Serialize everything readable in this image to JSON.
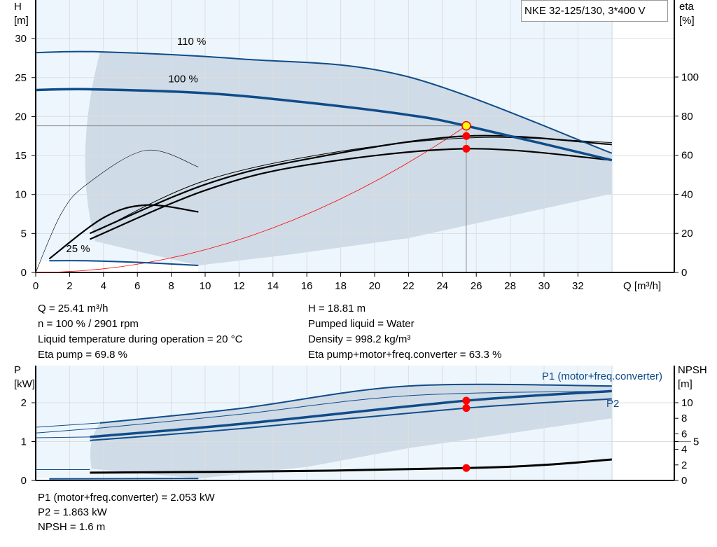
{
  "title_box": "NKE 32-125/130, 3*400 V",
  "chart_data": [
    {
      "type": "line",
      "name": "pump-curve",
      "xlabel": "Q [m³/h]",
      "ylabel": "H\n[m]",
      "y2label": "eta\n[%]",
      "xlim": [
        0,
        34
      ],
      "ylim": [
        0,
        30
      ],
      "y2lim": [
        0,
        100
      ],
      "grid": true,
      "xticks": [
        0,
        2,
        4,
        6,
        8,
        10,
        12,
        14,
        16,
        18,
        20,
        22,
        24,
        26,
        28,
        30,
        32
      ],
      "yticks": [
        0,
        5,
        10,
        15,
        20,
        25,
        30
      ],
      "y2ticks": [
        0,
        20,
        40,
        60,
        80,
        100
      ],
      "labels": [
        {
          "text": "110 %",
          "x": 9.2,
          "y": 29.2
        },
        {
          "text": "100 %",
          "x": 8.7,
          "y": 24.4
        },
        {
          "text": "25 %",
          "x": 2.5,
          "y": 2.6
        }
      ],
      "head_curves": [
        {
          "speed": "110 %",
          "points": [
            [
              0,
              28.2
            ],
            [
              3.8,
              28.3
            ],
            [
              12,
              27.4
            ],
            [
              21.8,
              25.2
            ],
            [
              34,
              15.3
            ]
          ]
        },
        {
          "speed": "100 %",
          "points": [
            [
              0,
              23.4
            ],
            [
              3.2,
              23.5
            ],
            [
              10,
              23.0
            ],
            [
              16,
              21.8
            ],
            [
              22,
              20.2
            ],
            [
              25.41,
              18.81
            ],
            [
              34,
              14.4
            ]
          ]
        },
        {
          "speed": "25 %",
          "points": [
            [
              0.8,
              1.5
            ],
            [
              3,
              1.5
            ],
            [
              6,
              1.3
            ],
            [
              9.6,
              0.9
            ]
          ]
        }
      ],
      "eta_curves": [
        {
          "points": [
            [
              3.2,
              20
            ],
            [
              10,
              45
            ],
            [
              16,
              58
            ],
            [
              25.41,
              69.8
            ],
            [
              34,
              65.5
            ]
          ]
        },
        {
          "points": [
            [
              3.2,
              17
            ],
            [
              10,
              42
            ],
            [
              16,
              55
            ],
            [
              25.41,
              63.3
            ],
            [
              34,
              57.5
            ]
          ]
        },
        {
          "points": [
            [
              3.8,
              22
            ],
            [
              10,
              47
            ],
            [
              18,
              62
            ],
            [
              26,
              69
            ],
            [
              34,
              66.5
            ]
          ]
        },
        {
          "points": [
            [
              0.8,
              7
            ],
            [
              4,
              28
            ],
            [
              6.5,
              34.5
            ],
            [
              9.6,
              31
            ]
          ]
        },
        {
          "points": [
            [
              0,
              0
            ],
            [
              1.5,
              30
            ],
            [
              3,
              45
            ],
            [
              6.5,
              62.5
            ],
            [
              9.6,
              54
            ]
          ]
        }
      ],
      "envelope_lower": [
        [
          9.6,
          0.9
        ],
        [
          15,
          2.3
        ],
        [
          22,
          4.4
        ],
        [
          34,
          10.1
        ]
      ],
      "system_curve_end": [
        25.41,
        18.81
      ],
      "duty_point": {
        "Q": 25.41,
        "H": 18.81,
        "eta_pump": 69.8,
        "eta_total": 63.3
      }
    },
    {
      "type": "line",
      "name": "power-curve",
      "ylabel": "P\n[kW]",
      "y2label": "NPSH\n[m]",
      "xlim": [
        0,
        34
      ],
      "ylim": [
        0,
        2.9
      ],
      "y2lim": [
        0,
        13.5
      ],
      "yticks": [
        0,
        1,
        2
      ],
      "y2ticks": [
        0,
        2,
        4,
        5,
        6,
        8,
        10
      ],
      "series_labels": [
        "P1 (motor+freq.converter)",
        "P2"
      ],
      "p_curves": [
        {
          "points": [
            [
              3.8,
              1.48
            ],
            [
              12,
              1.85
            ],
            [
              22,
              2.43
            ],
            [
              34,
              2.43
            ]
          ]
        },
        {
          "points": [
            [
              3.8,
              1.35
            ],
            [
              12,
              1.7
            ],
            [
              22,
              2.18
            ],
            [
              34,
              2.3
            ]
          ]
        },
        {
          "points": [
            [
              3.2,
              1.12
            ],
            [
              12,
              1.45
            ],
            [
              25.41,
              2.053
            ],
            [
              34,
              2.3
            ]
          ]
        },
        {
          "points": [
            [
              3.2,
              1.03
            ],
            [
              12,
              1.33
            ],
            [
              25.41,
              1.863
            ],
            [
              34,
              2.1
            ]
          ]
        },
        {
          "points": [
            [
              0.8,
              0.04
            ],
            [
              9.6,
              0.05
            ]
          ]
        }
      ],
      "npsh_curve": [
        [
          3.2,
          1.0
        ],
        [
          15,
          1.2
        ],
        [
          25.41,
          1.6
        ],
        [
          30,
          2.0
        ],
        [
          34,
          2.7
        ]
      ],
      "envelope_lower": [
        [
          9.6,
          0.05
        ],
        [
          16,
          0.35
        ],
        [
          22,
          0.83
        ],
        [
          34,
          1.6
        ]
      ],
      "duty_point": {
        "P1": 2.053,
        "P2": 1.863,
        "NPSH": 1.6
      }
    }
  ],
  "info_top_left": [
    "Q = 25.41 m³/h",
    "n = 100 % / 2901 rpm",
    "Liquid temperature during operation = 20 °C",
    "Eta pump = 69.8 %"
  ],
  "info_top_right": [
    "H = 18.81 m",
    "Pumped liquid = Water",
    "Density = 998.2 kg/m³",
    "Eta pump+motor+freq.converter = 63.3 %"
  ],
  "info_bottom": [
    "P1 (motor+freq.converter) = 2.053 kW",
    "P2 = 1.863 kW",
    "NPSH = 1.6 m"
  ],
  "colors": {
    "curve": "#0f4c8a",
    "envelope": "#cfdbe6",
    "light": "#eef6fd",
    "duty": "#ff0000",
    "system": "#ff0000"
  }
}
